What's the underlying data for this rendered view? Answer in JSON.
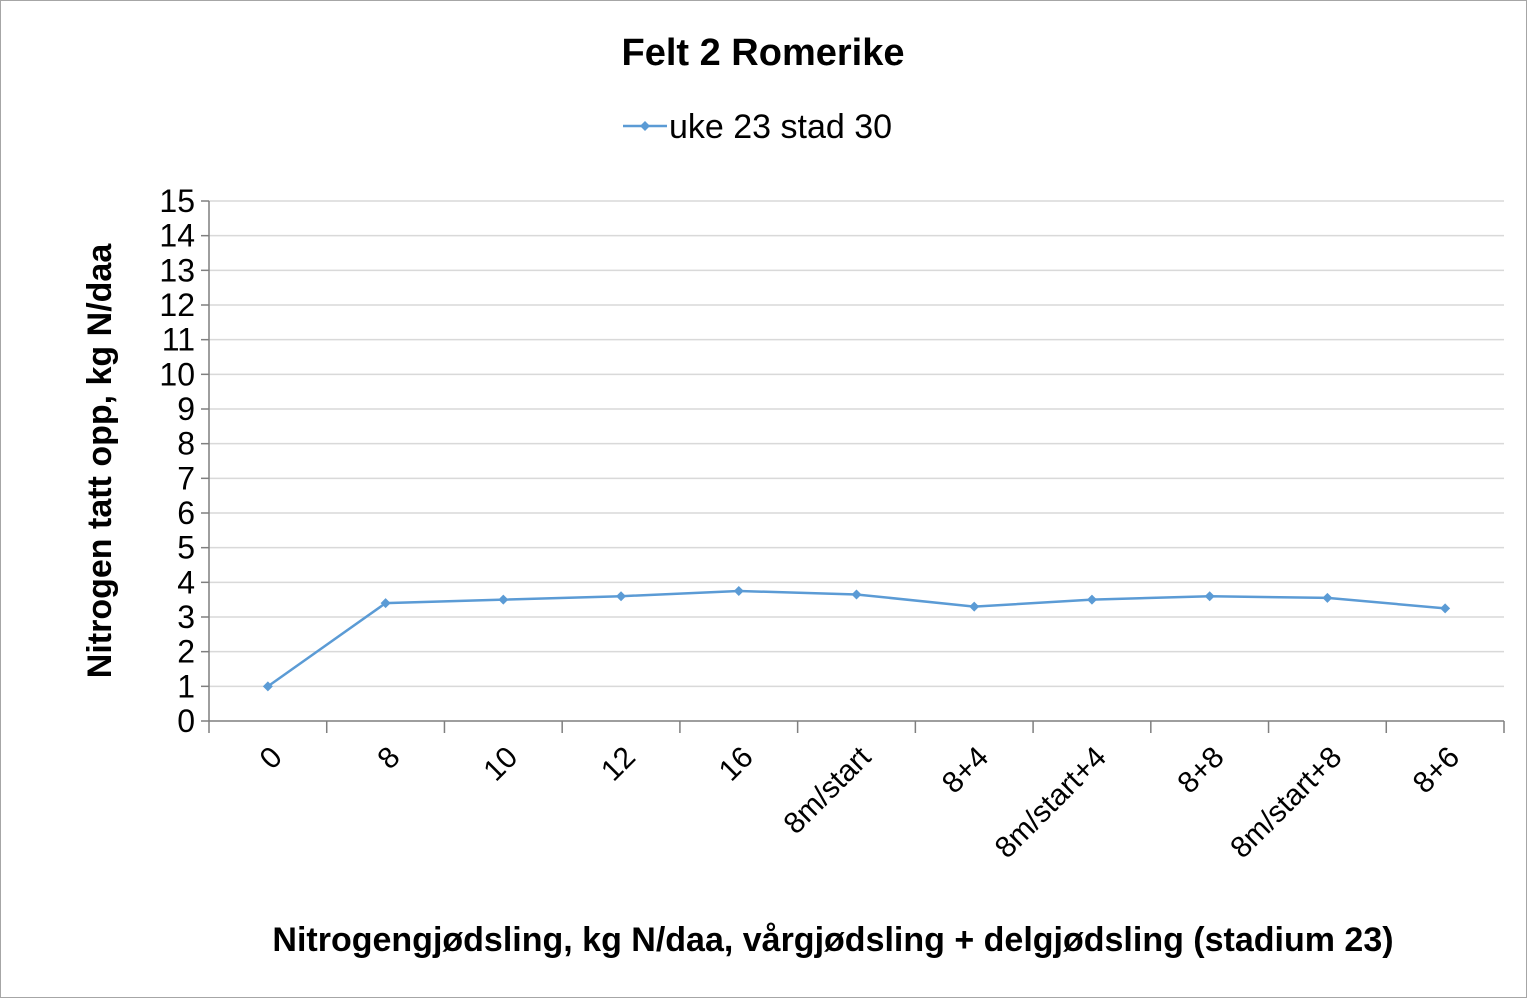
{
  "chart_data": {
    "type": "line",
    "title": "Felt 2 Romerike",
    "xlabel": "Nitrogengjødsling, kg N/daa, vårgjødsling + delgjødsling (stadium 23)",
    "ylabel": "Nitrogen tatt opp, kg N/daa",
    "categories": [
      "0",
      "8",
      "10",
      "12",
      "16",
      "8m/start",
      "8+4",
      "8m/start+4",
      "8+8",
      "8m/start+8",
      "8+6"
    ],
    "series": [
      {
        "name": "uke 23 stad 30",
        "color": "#5b9bd5",
        "values": [
          1.0,
          3.4,
          3.5,
          3.6,
          3.75,
          3.65,
          3.3,
          3.5,
          3.6,
          3.55,
          3.25
        ]
      }
    ],
    "ylim": [
      0,
      15
    ],
    "yticks": [
      "0",
      "1",
      "2",
      "3",
      "4",
      "5",
      "6",
      "7",
      "8",
      "9",
      "10",
      "11",
      "12",
      "13",
      "14",
      "15"
    ],
    "grid": true,
    "legend_position": "top"
  }
}
